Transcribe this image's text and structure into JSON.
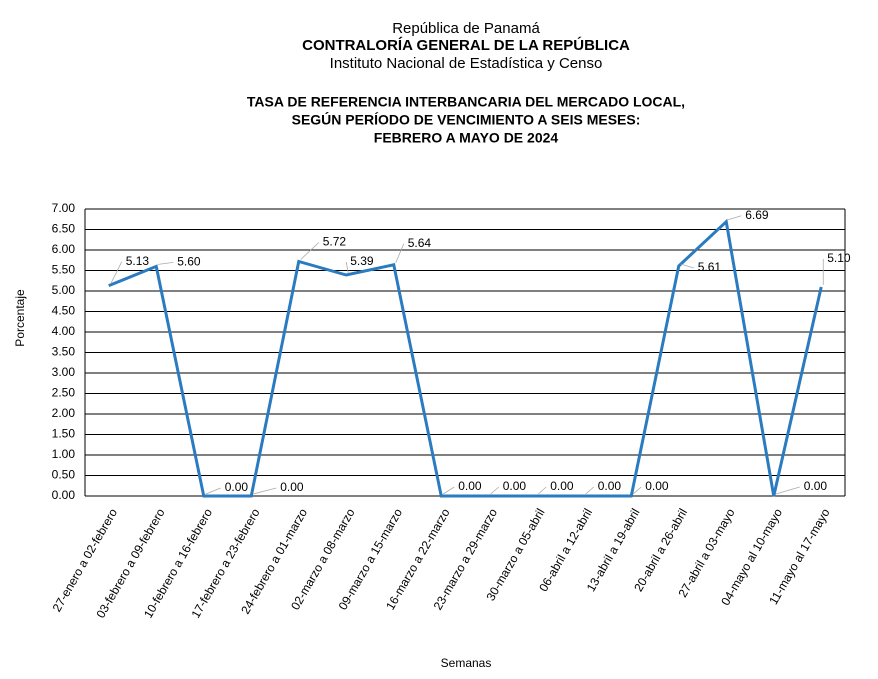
{
  "header": {
    "country": "República de Panamá",
    "institution": "CONTRALORÍA GENERAL DE LA REPÚBLICA",
    "department": "Instituto  Nacional de Estadística  y  Censo"
  },
  "chart_data": {
    "type": "line",
    "title": [
      "TASA DE REFERENCIA INTERBANCARIA DEL MERCADO LOCAL,",
      "SEGÚN PERÍODO DE VENCIMIENTO A SEIS MESES:",
      "FEBRERO A MAYO DE 2024"
    ],
    "x_label": "Semanas",
    "y_label": "Porcentaje",
    "categories": [
      "27-enero a 02-febrero",
      "03-febrero a 09-febrero",
      "10-febrero a 16-febrero",
      "17-febrero a 23-febrero",
      "24-febrero a 01-marzo",
      "02-marzo a 08-marzo",
      "09-marzo a 15-marzo",
      "16-marzo a 22-marzo",
      "23-marzo a 29-marzo",
      "30-marzo a 05-abril",
      "06-abril a 12-abril",
      "13-abril a 19-abril",
      "20-abril a 26-abril",
      "27-abril a 03-mayo",
      "04-mayo al 10-mayo",
      "11-mayo al 17-mayo"
    ],
    "values": [
      5.13,
      5.6,
      0,
      0,
      5.72,
      5.39,
      5.64,
      0,
      0,
      0,
      0,
      0,
      5.61,
      6.69,
      0,
      5.1
    ],
    "value_labels": [
      "5.13",
      "5.60",
      "0.00",
      "0.00",
      "5.72",
      "5.39",
      "5.64",
      "0.00",
      "0.00",
      "0.00",
      "0.00",
      "0.00",
      "5.61",
      "6.69",
      "0.00",
      "5.10"
    ],
    "color": "#2a7bbf",
    "ylim": [
      0,
      7
    ],
    "yticks": [
      {
        "value": 0,
        "label": "0.00"
      },
      {
        "value": 0.5,
        "label": "0.50"
      },
      {
        "value": 1,
        "label": "1.00"
      },
      {
        "value": 1.5,
        "label": "1.50"
      },
      {
        "value": 2,
        "label": "2.00"
      },
      {
        "value": 2.5,
        "label": "2.50"
      },
      {
        "value": 3,
        "label": "3.00"
      },
      {
        "value": 3.5,
        "label": "3.50"
      },
      {
        "value": 4,
        "label": "4.00"
      },
      {
        "value": 4.5,
        "label": "4.50"
      },
      {
        "value": 5,
        "label": "5.00"
      },
      {
        "value": 5.5,
        "label": "5.50"
      },
      {
        "value": 6,
        "label": "6.00"
      },
      {
        "value": 6.5,
        "label": "6.50"
      },
      {
        "value": 7,
        "label": "7.00"
      }
    ],
    "grid": true
  }
}
